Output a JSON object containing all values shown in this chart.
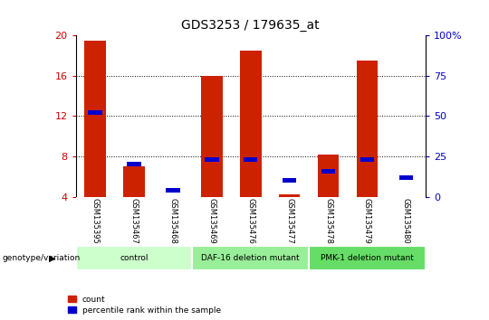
{
  "title": "GDS3253 / 179635_at",
  "samples": [
    "GSM135395",
    "GSM135467",
    "GSM135468",
    "GSM135469",
    "GSM135476",
    "GSM135477",
    "GSM135478",
    "GSM135479",
    "GSM135480"
  ],
  "count_values": [
    19.5,
    7.0,
    4.0,
    16.0,
    18.5,
    4.2,
    8.2,
    17.5,
    4.0
  ],
  "percentile_values": [
    52.0,
    20.0,
    4.0,
    23.0,
    23.0,
    10.0,
    16.0,
    23.0,
    12.0
  ],
  "ylim": [
    4,
    20
  ],
  "yticks": [
    4,
    8,
    12,
    16,
    20
  ],
  "ytick_labels_left": [
    "4",
    "8",
    "12",
    "16",
    "20"
  ],
  "ytick_labels_right": [
    "0",
    "25",
    "50",
    "75",
    "100%"
  ],
  "y2lim": [
    0,
    100
  ],
  "y2ticks": [
    0,
    25,
    50,
    75,
    100
  ],
  "groups": [
    {
      "label": "control",
      "indices": [
        0,
        1,
        2
      ],
      "color": "#ccffcc"
    },
    {
      "label": "DAF-16 deletion mutant",
      "indices": [
        3,
        4,
        5
      ],
      "color": "#99ee99"
    },
    {
      "label": "PMK-1 deletion mutant",
      "indices": [
        6,
        7,
        8
      ],
      "color": "#66dd66"
    }
  ],
  "bar_color_red": "#cc2200",
  "bar_color_blue": "#0000cc",
  "bar_width": 0.55,
  "bg_color": "#ffffff",
  "plot_bg_color": "#ffffff",
  "grid_color": "#000000",
  "sample_bg_color": "#cccccc",
  "left_tick_color": "#cc0000",
  "right_tick_color": "#0000cc",
  "legend_count_label": "count",
  "legend_pct_label": "percentile rank within the sample"
}
